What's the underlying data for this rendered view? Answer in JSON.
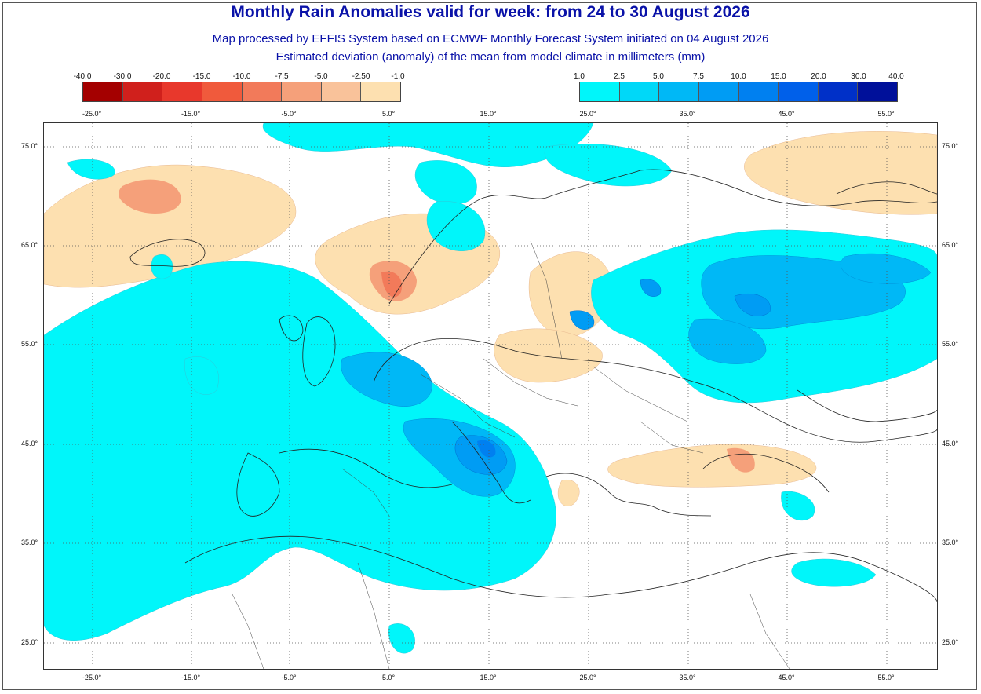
{
  "header": {
    "title": "Monthly Rain Anomalies valid for week: from 24 to 30 August 2026",
    "subtitle1": "Map processed by EFFIS System based on ECMWF Monthly Forecast System initiated on 04 August 2026",
    "subtitle2": "Estimated deviation (anomaly) of the mean from model climate in millimeters (mm)"
  },
  "legend": {
    "negative": {
      "ticks": [
        "-40.0",
        "-30.0",
        "-20.0",
        "-15.0",
        "-10.0",
        "-7.5",
        "-5.0",
        "-2.50",
        "-1.0"
      ],
      "colors": [
        "#a40000",
        "#d0201c",
        "#e8382c",
        "#f05a3c",
        "#f27a5a",
        "#f5a07a",
        "#f9c29a",
        "#fde0b0"
      ]
    },
    "positive": {
      "ticks": [
        "1.0",
        "2.5",
        "5.0",
        "7.5",
        "10.0",
        "15.0",
        "20.0",
        "30.0",
        "40.0"
      ],
      "colors": [
        "#00f6fa",
        "#00d8f8",
        "#00b8f6",
        "#009cf4",
        "#0080f0",
        "#0060ea",
        "#0030c8",
        "#00109a"
      ]
    }
  },
  "axes": {
    "lon_labels": [
      "-25.0°",
      "-15.0°",
      "-5.0°",
      "5.0°",
      "15.0°",
      "25.0°",
      "35.0°",
      "45.0°",
      "55.0°"
    ],
    "lat_labels": [
      "75.0°",
      "65.0°",
      "55.0°",
      "45.0°",
      "35.0°",
      "25.0°"
    ]
  }
}
